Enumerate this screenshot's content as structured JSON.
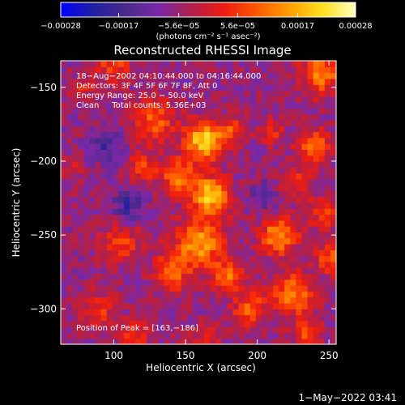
{
  "chart_data": {
    "type": "heatmap",
    "title": "Reconstructed RHESSI Image",
    "xlabel": "Heliocentric X (arcsec)",
    "ylabel": "Heliocentric Y (arcsec)",
    "xlim": [
      63,
      255
    ],
    "ylim": [
      -324,
      -132
    ],
    "x_ticks": [
      100,
      150,
      200,
      250
    ],
    "x_tick_labels": [
      "100",
      "150",
      "200",
      "250"
    ],
    "y_ticks": [
      -150,
      -200,
      -250,
      -300
    ],
    "y_tick_labels": [
      "−150",
      "−200",
      "−250",
      "−300"
    ],
    "colorbar": {
      "range": [
        -0.00028,
        0.00028
      ],
      "ticks": [
        -0.00028,
        -0.00017,
        -5.6e-05,
        5.6e-05,
        0.00017,
        0.00028
      ],
      "tick_labels": [
        "−0.00028",
        "−0.00017",
        "−5.6e−05",
        "5.6e−05",
        "0.00017",
        "0.00028"
      ],
      "unit_text": "(photons cm⁻² s⁻¹ asec⁻²)",
      "colormap": [
        "#0000ff",
        "#2020a0",
        "#4a2a8a",
        "#7a28a8",
        "#b0204a",
        "#ee1c10",
        "#ff5a00",
        "#ffa000",
        "#ffe020",
        "#ffffc0"
      ]
    },
    "annotations": [
      "18−Aug−2002 04:10:44.000 to 04:16:44.000",
      "Detectors: 3F 4F 5F 6F 7F 8F, Att 0",
      "Energy Range: 25.0 − 50.0 keV",
      "Clean     Total counts: 5.36E+03"
    ],
    "peak_label": "Position of Peak = [163,−186]",
    "peak": [
      163,
      -186
    ],
    "sources": [
      {
        "x": 163,
        "y": -186,
        "peak": 0.00028,
        "sigma": 9
      },
      {
        "x": 167,
        "y": -223,
        "peak": 0.00026,
        "sigma": 9
      },
      {
        "x": 128,
        "y": -172,
        "peak": 0.00015,
        "sigma": 10
      },
      {
        "x": 145,
        "y": -210,
        "peak": 0.00018,
        "sigma": 8
      },
      {
        "x": 120,
        "y": -203,
        "peak": 0.00012,
        "sigma": 7
      },
      {
        "x": 183,
        "y": -178,
        "peak": 0.00013,
        "sigma": 6
      },
      {
        "x": 245,
        "y": -140,
        "peak": 0.00018,
        "sigma": 10
      },
      {
        "x": 240,
        "y": -190,
        "peak": 0.00016,
        "sigma": 8
      },
      {
        "x": 227,
        "y": -215,
        "peak": 0.0001,
        "sigma": 7
      },
      {
        "x": 247,
        "y": -235,
        "peak": 0.00012,
        "sigma": 8
      },
      {
        "x": 210,
        "y": -180,
        "peak": 9e-05,
        "sigma": 6
      },
      {
        "x": 160,
        "y": -255,
        "peak": 0.00022,
        "sigma": 11
      },
      {
        "x": 180,
        "y": -278,
        "peak": 0.00016,
        "sigma": 8
      },
      {
        "x": 140,
        "y": -275,
        "peak": 0.00015,
        "sigma": 9
      },
      {
        "x": 215,
        "y": -250,
        "peak": 0.0002,
        "sigma": 9
      },
      {
        "x": 225,
        "y": -290,
        "peak": 0.00018,
        "sigma": 10
      },
      {
        "x": 250,
        "y": -265,
        "peak": 0.00014,
        "sigma": 7
      },
      {
        "x": 195,
        "y": -300,
        "peak": 0.00015,
        "sigma": 8
      },
      {
        "x": 105,
        "y": -255,
        "peak": 0.00012,
        "sigma": 9
      },
      {
        "x": 90,
        "y": -300,
        "peak": 0.0001,
        "sigma": 8
      },
      {
        "x": 115,
        "y": -318,
        "peak": 0.00011,
        "sigma": 7
      },
      {
        "x": 100,
        "y": -135,
        "peak": 0.00013,
        "sigma": 8
      },
      {
        "x": 80,
        "y": -150,
        "peak": 8e-05,
        "sigma": 6
      },
      {
        "x": 165,
        "y": -318,
        "peak": 9e-05,
        "sigma": 7
      },
      {
        "x": 235,
        "y": -318,
        "peak": 0.00012,
        "sigma": 7
      },
      {
        "x": 70,
        "y": -205,
        "peak": 6e-05,
        "sigma": 6
      },
      {
        "x": 95,
        "y": -190,
        "peak": -0.0001,
        "sigma": 8
      },
      {
        "x": 205,
        "y": -225,
        "peak": -8e-05,
        "sigma": 7
      },
      {
        "x": 110,
        "y": -230,
        "peak": -0.00012,
        "sigma": 7
      }
    ]
  },
  "footer": {
    "timestamp": "1−May−2022 03:41"
  }
}
